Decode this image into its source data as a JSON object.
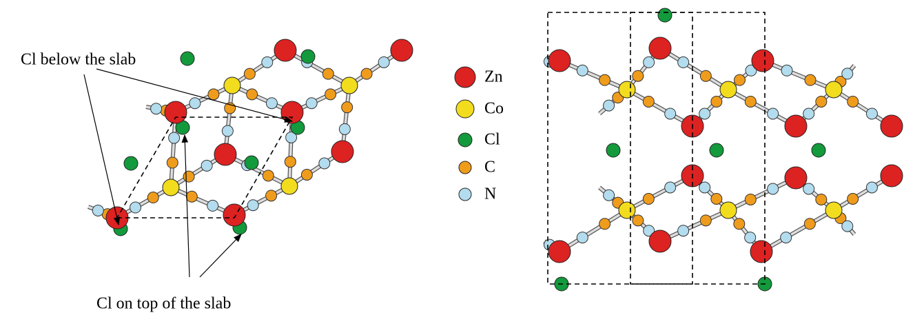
{
  "annotations": {
    "below": "Cl below the slab",
    "top": "Cl on top of the slab"
  },
  "legend": [
    {
      "label": "Zn",
      "color": "#dd2222"
    },
    {
      "label": "Co",
      "color": "#f2dc1e"
    },
    {
      "label": "Cl",
      "color": "#139a3c"
    },
    {
      "label": "C",
      "color": "#ef9c1c"
    },
    {
      "label": "N",
      "color": "#b3dcee"
    }
  ]
}
